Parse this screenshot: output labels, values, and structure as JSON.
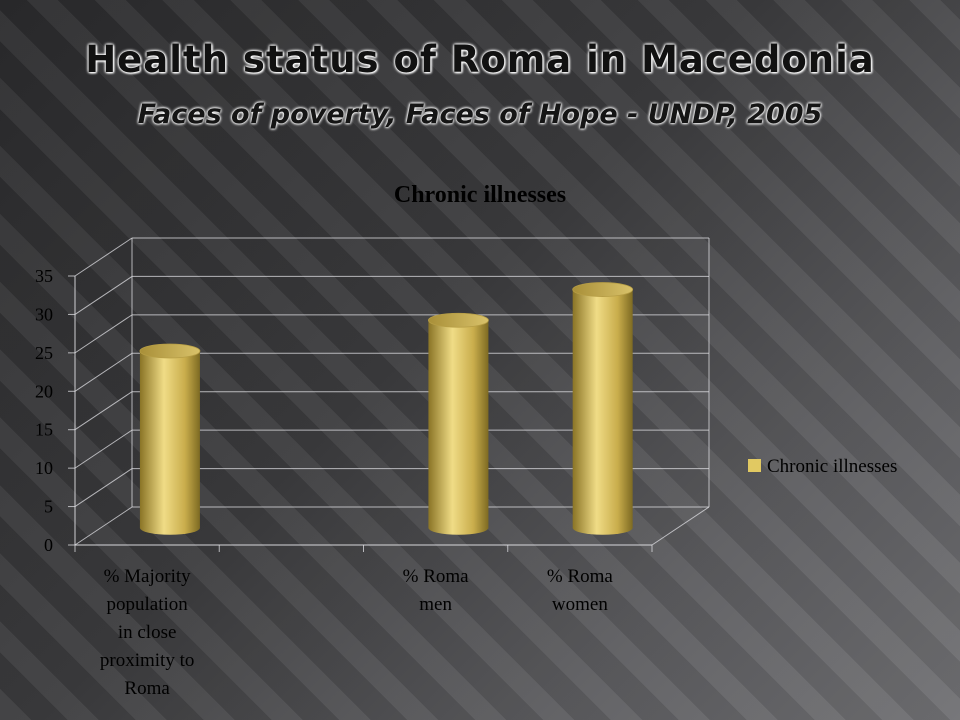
{
  "slide": {
    "title": "Health status of Roma in Macedonia",
    "subtitle": "Faces of poverty, Faces of Hope - UNDP, 2005"
  },
  "chart_data": {
    "type": "bar",
    "style": "3d-cylinder",
    "title": "Chronic illnesses",
    "categories": [
      "% Majority population in close proximity to Roma",
      "",
      "% Roma men",
      "% Roma women"
    ],
    "category_lines": [
      [
        "% Majority",
        "population",
        "in close",
        "proximity to",
        "Roma"
      ],
      [],
      [
        "% Roma",
        "men"
      ],
      [
        "% Roma",
        "women"
      ]
    ],
    "series": [
      {
        "name": "Chronic illnesses",
        "values": [
          23,
          null,
          27,
          31
        ]
      }
    ],
    "ylim": [
      0,
      35
    ],
    "yticks": [
      0,
      5,
      10,
      15,
      20,
      25,
      30,
      35
    ],
    "grid": true,
    "legend": "right",
    "colors": {
      "bar": "#d4bd60",
      "bar_light": "#f0dc86",
      "bar_dark": "#8a7426",
      "legend_swatch": "#e1c962"
    }
  }
}
